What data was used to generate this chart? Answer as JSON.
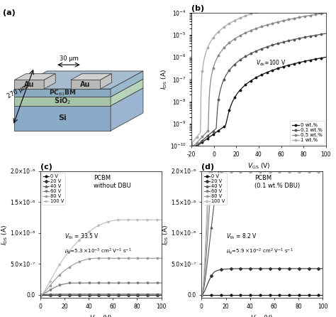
{
  "fig_width": 4.74,
  "fig_height": 4.46,
  "b_xlabel": "$V_{\\mathrm{GS}}$ (V)",
  "b_ylabel": "$I_{\\mathrm{DS}}$ (A)",
  "b_xlim": [
    -20,
    100
  ],
  "b_annotation": "$V_{\\mathrm{ds}}$=100 V",
  "b_legend": [
    "0 wt.%",
    "0.1 wt.%",
    "0.5 wt.%",
    "1 wt.%"
  ],
  "b_colors": [
    "#111111",
    "#555555",
    "#888888",
    "#aaaaaa"
  ],
  "c_xlabel": "$V_{\\mathrm{DS}}$ (V)",
  "c_ylabel": "$I_{\\mathrm{DS}}$ (A)",
  "c_title": "PCBM\nwithout DBU",
  "c_legend": [
    "0 V",
    "20 V",
    "40 V",
    "60 V",
    "80 V",
    "100 V"
  ],
  "c_colors": [
    "#111111",
    "#333333",
    "#555555",
    "#777777",
    "#999999",
    "#bbbbbb"
  ],
  "c_Vth": 33.5,
  "c_mu": 0.0053,
  "d_xlabel": "$V_{\\mathrm{DS}}$ (V)",
  "d_ylabel": "$I_{\\mathrm{DS}}$ (A)",
  "d_title": "PCBM\n(0.1 wt.% DBU)",
  "d_legend": [
    "0 V",
    "20 V",
    "40 V",
    "60 V",
    "80 V",
    "100 V"
  ],
  "d_colors": [
    "#111111",
    "#333333",
    "#555555",
    "#777777",
    "#999999",
    "#bbbbbb"
  ],
  "d_Vth": 8.2,
  "d_mu": 0.059,
  "si_colors": [
    "#b0c4de",
    "#8aaac8",
    "#9ab4d2"
  ],
  "sio2_colors": [
    "#c8dcc8",
    "#a8c4a8",
    "#b8d4b8"
  ],
  "pcbm_colors": [
    "#a8bcd0",
    "#8aaac0",
    "#98b8cc"
  ],
  "au_colors": [
    "#d0d0d0",
    "#b8b8b8",
    "#c4c4c4"
  ]
}
